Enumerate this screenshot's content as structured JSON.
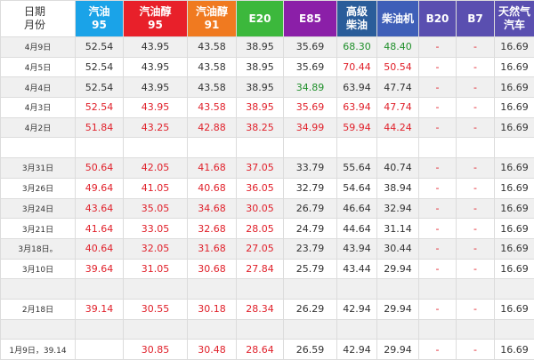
{
  "table": {
    "header": [
      [
        "日期",
        "月份"
      ],
      [
        "汽油",
        "95"
      ],
      [
        "汽油醇",
        "95"
      ],
      [
        "汽油醇",
        "91"
      ],
      [
        "E20"
      ],
      [
        "E85"
      ],
      [
        "高级",
        "柴油"
      ],
      [
        "柴油机"
      ],
      [
        "B20"
      ],
      [
        "B7"
      ],
      [
        "天然气",
        "汽车"
      ]
    ],
    "rows": [
      [
        "4月9日",
        "52.54",
        "43.95",
        "43.58",
        "38.95",
        "35.69",
        "68.30",
        "48.40",
        "-",
        "-",
        "16.69"
      ],
      [
        "4月5日",
        "52.54",
        "43.95",
        "43.58",
        "38.95",
        "35.69",
        "70.44",
        "50.54",
        "-",
        "-",
        "16.69"
      ],
      [
        "4月4日",
        "52.54",
        "43.95",
        "43.58",
        "38.95",
        "34.89",
        "63.94",
        "47.74",
        "-",
        "-",
        "16.69"
      ],
      [
        "4月3日",
        "52.54",
        "43.95",
        "43.58",
        "38.95",
        "35.69",
        "63.94",
        "47.74",
        "-",
        "-",
        "16.69"
      ],
      [
        "4月2日",
        "51.84",
        "43.25",
        "42.88",
        "38.25",
        "34.99",
        "59.94",
        "44.24",
        "-",
        "-",
        "16.69"
      ],
      [],
      [
        "3月31日",
        "50.64",
        "42.05",
        "41.68",
        "37.05",
        "33.79",
        "55.64",
        "40.74",
        "-",
        "-",
        "16.69"
      ],
      [
        "3月26日",
        "49.64",
        "41.05",
        "40.68",
        "36.05",
        "32.79",
        "54.64",
        "38.94",
        "-",
        "-",
        "16.69"
      ],
      [
        "3月24日",
        "43.64",
        "35.05",
        "34.68",
        "30.05",
        "26.79",
        "46.64",
        "32.94",
        "-",
        "-",
        "16.69"
      ],
      [
        "3月21日",
        "41.64",
        "33.05",
        "32.68",
        "28.05",
        "24.79",
        "44.64",
        "31.14",
        "-",
        "-",
        "16.69"
      ],
      [
        "3月18日。",
        "40.64",
        "32.05",
        "31.68",
        "27.05",
        "23.79",
        "43.94",
        "30.44",
        "-",
        "-",
        "16.69"
      ],
      [
        "3月10日",
        "39.64",
        "31.05",
        "30.68",
        "27.84",
        "25.79",
        "43.44",
        "29.94",
        "-",
        "-",
        "16.69"
      ],
      [],
      [
        "2月18日",
        "39.14",
        "30.55",
        "30.18",
        "28.34",
        "26.29",
        "42.94",
        "29.94",
        "-",
        "-",
        "16.69"
      ],
      [],
      [
        "1月9日，39.14",
        null,
        "30.85",
        "30.48",
        "28.64",
        "26.59",
        "42.94",
        "29.94",
        "-",
        "-",
        "16.69"
      ]
    ]
  }
}
